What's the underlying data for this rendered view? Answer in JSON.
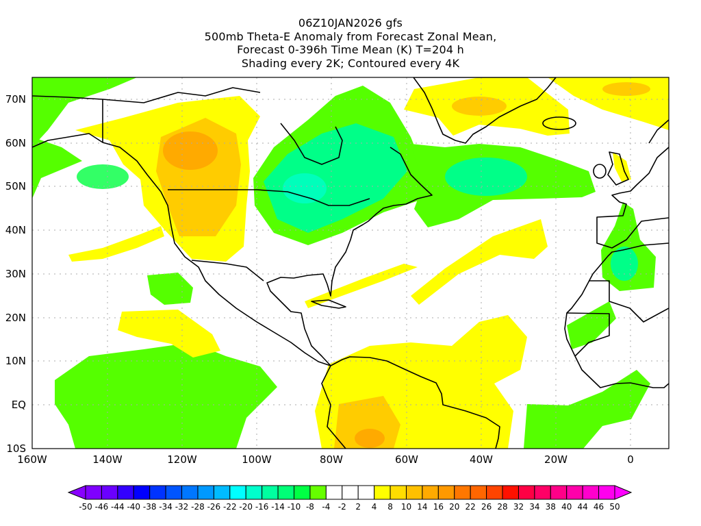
{
  "title": {
    "line1": "06Z10JAN2026 gfs",
    "line2": "500mb Theta-E Anomaly from Forecast Zonal Mean,",
    "line3": "Forecast 0-396h Time Mean (K) T=204 h",
    "line4": "Shading every 2K; Contoured every 4K"
  },
  "axes": {
    "lat_labels": [
      "70N",
      "60N",
      "50N",
      "40N",
      "30N",
      "20N",
      "10N",
      "EQ",
      "10S"
    ],
    "lon_labels": [
      "160W",
      "140W",
      "120W",
      "100W",
      "80W",
      "60W",
      "40W",
      "20W",
      "0"
    ]
  },
  "colorbar": {
    "labels": [
      "-50",
      "-46",
      "-44",
      "-40",
      "-38",
      "-34",
      "-32",
      "-28",
      "-26",
      "-22",
      "-20",
      "-16",
      "-14",
      "-10",
      "-8",
      "-4",
      "-2",
      "2",
      "4",
      "8",
      "10",
      "14",
      "16",
      "20",
      "22",
      "26",
      "28",
      "32",
      "34",
      "38",
      "40",
      "44",
      "46",
      "50"
    ],
    "colors": [
      "#7f00ff",
      "#6a00ff",
      "#3300ff",
      "#0000ff",
      "#0033ff",
      "#0055ff",
      "#0077ff",
      "#0099ff",
      "#00bbff",
      "#00ffff",
      "#00ffcc",
      "#00ffa0",
      "#00ff77",
      "#00ff44",
      "#66ff00",
      "#ffffff",
      "#ffffff",
      "#ffffff",
      "#ffff00",
      "#ffdd00",
      "#ffc000",
      "#ffaa00",
      "#ff9900",
      "#ff7700",
      "#ff6600",
      "#ff4400",
      "#ff1100",
      "#ff0044",
      "#ff0066",
      "#ff0088",
      "#ff00aa",
      "#ff00cc",
      "#ff00ee"
    ],
    "low_arrow_color": "#8800ff",
    "high_arrow_color": "#ff00ff"
  }
}
